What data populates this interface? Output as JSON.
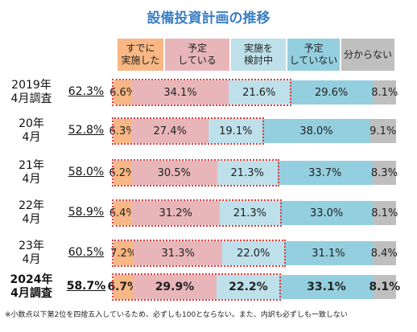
{
  "chart_data": {
    "type": "stacked-bar-horizontal",
    "title": "設備投資計画の推移",
    "note": "※小数点以下第2位を四捨五入しているため、必ずしも100とならない。また、内訳も必ずしも一致しない",
    "categories": [
      "2019年\n4月調査",
      "20年\n4月",
      "21年\n4月",
      "22年\n4月",
      "23年\n4月",
      "2024年\n4月調査"
    ],
    "xlim": [
      0,
      100
    ],
    "totals": {
      "values": [
        62.3,
        52.8,
        58.0,
        58.9,
        60.5,
        58.7
      ],
      "value_labels": [
        "62.3%",
        "52.8%",
        "58.0%",
        "58.9%",
        "60.5%",
        "58.7%"
      ]
    },
    "series": [
      {
        "name": "すでに\n実施した",
        "color": "#f8b784",
        "values": [
          6.6,
          6.3,
          6.2,
          6.4,
          7.2,
          6.7
        ],
        "value_labels": [
          "6.6%",
          "6.3%",
          "6.2%",
          "6.4%",
          "7.2%",
          "6.7%"
        ]
      },
      {
        "name": "予定\nしている",
        "color": "#e8b6b9",
        "values": [
          34.1,
          27.4,
          30.5,
          31.2,
          31.3,
          29.9
        ],
        "value_labels": [
          "34.1%",
          "27.4%",
          "30.5%",
          "31.2%",
          "31.3%",
          "29.9%"
        ]
      },
      {
        "name": "実施を\n検討中",
        "color": "#bde0ea",
        "values": [
          21.6,
          19.1,
          21.3,
          21.3,
          22.0,
          22.2
        ],
        "value_labels": [
          "21.6%",
          "19.1%",
          "21.3%",
          "21.3%",
          "22.0%",
          "22.2%"
        ]
      },
      {
        "name": "予定\nしていない",
        "color": "#94cfdf",
        "values": [
          29.6,
          38.0,
          33.7,
          33.0,
          31.1,
          33.1
        ],
        "value_labels": [
          "29.6%",
          "38.0%",
          "33.7%",
          "33.0%",
          "31.1%",
          "33.1%"
        ]
      },
      {
        "name": "分からない",
        "color": "#bfbfbf",
        "values": [
          8.1,
          9.1,
          8.3,
          8.1,
          8.4,
          8.1
        ],
        "value_labels": [
          "8.1%",
          "9.1%",
          "8.3%",
          "8.1%",
          "8.4%",
          "8.1%"
        ]
      }
    ]
  }
}
